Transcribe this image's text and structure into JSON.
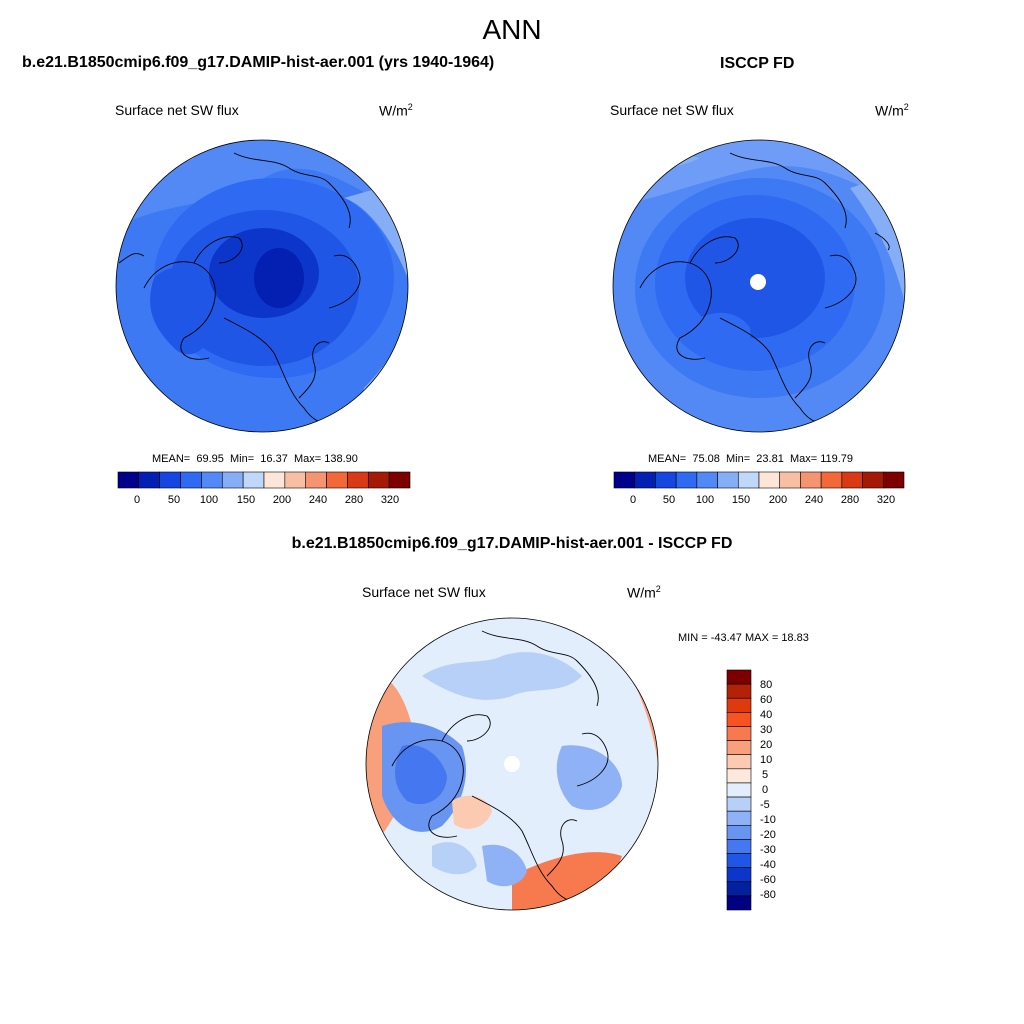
{
  "season": "ANN",
  "colors": {
    "palette12": [
      "#00008a",
      "#0320b3",
      "#1646e0",
      "#2f6af2",
      "#5289f5",
      "#86aef7",
      "#c1d7fa",
      "#fde6d8",
      "#f8bfa4",
      "#f59470",
      "#f26838",
      "#d73a15",
      "#a51a05",
      "#7d0000"
    ],
    "diff_palette": [
      "#7d0000",
      "#b32106",
      "#df3a0b",
      "#f65320",
      "#f67a4e",
      "#f7a07b",
      "#fbcab0",
      "#fde8dc",
      "#e2eefb",
      "#b7d0f8",
      "#8fb1f5",
      "#6995f2",
      "#4578f0",
      "#1f56e6",
      "#0b36c9",
      "#03209e",
      "#000080"
    ]
  },
  "panels": [
    {
      "title": "b.e21.B1850cmip6.f09_g17.DAMIP-hist-aer.001 (yrs 1940-1964)",
      "variable": "Surface net SW flux",
      "units": "W/m",
      "units_exp": "2",
      "stats": {
        "mean_label": "MEAN=",
        "mean": "69.95",
        "min_label": "Min=",
        "min": "16.37",
        "max_label": "Max=",
        "max": "138.90"
      },
      "colorbar_labels": [
        "0",
        "50",
        "100",
        "150",
        "200",
        "240",
        "280",
        "320"
      ]
    },
    {
      "title": "ISCCP FD",
      "variable": "Surface net SW flux",
      "units": "W/m",
      "units_exp": "2",
      "stats": {
        "mean_label": "MEAN=",
        "mean": "75.08",
        "min_label": "Min=",
        "min": "23.81",
        "max_label": "Max=",
        "max": "119.79"
      },
      "colorbar_labels": [
        "0",
        "50",
        "100",
        "150",
        "200",
        "240",
        "280",
        "320"
      ]
    }
  ],
  "diff": {
    "title": "b.e21.B1850cmip6.f09_g17.DAMIP-hist-aer.001 - ISCCP FD",
    "variable": "Surface net SW flux",
    "units": "W/m",
    "units_exp": "2",
    "minmax": "MIN = -43.47 MAX =  18.83",
    "colorbar_labels": [
      "80",
      "60",
      "40",
      "30",
      "20",
      "10",
      "5",
      "0",
      "-5",
      "-10",
      "-20",
      "-30",
      "-40",
      "-60",
      "-80"
    ]
  }
}
